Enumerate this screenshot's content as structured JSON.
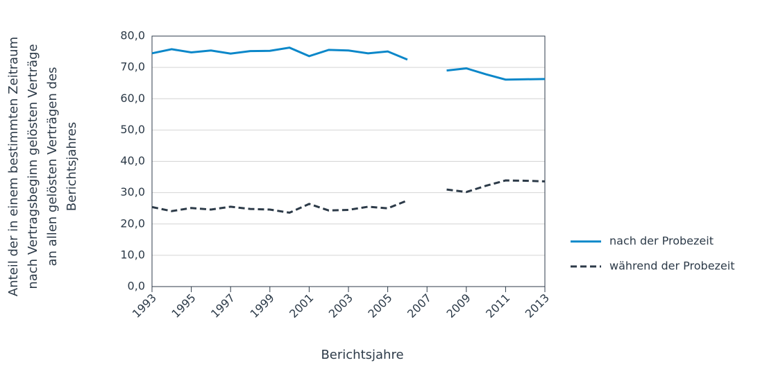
{
  "chart_data": {
    "type": "line",
    "ylabel": [
      "Anteil der in einem bestimmten Zeitraum",
      "nach Vertragsbeginn gelösten Verträge",
      "an allen gelösten Verträgen des",
      "Berichtsjahres"
    ],
    "xlabel": "Berichtsjahre",
    "x": [
      1993,
      1994,
      1995,
      1996,
      1997,
      1998,
      1999,
      2000,
      2001,
      2002,
      2003,
      2004,
      2005,
      2006,
      2007,
      2008,
      2009,
      2010,
      2011,
      2012,
      2013
    ],
    "series": [
      {
        "name": "nach der Probezeit",
        "color": "#0b87c9",
        "dash": false,
        "values": [
          74.5,
          75.8,
          74.8,
          75.4,
          74.4,
          75.2,
          75.3,
          76.3,
          73.6,
          75.6,
          75.4,
          74.5,
          75.1,
          72.5,
          null,
          69.0,
          69.7,
          67.8,
          66.1,
          66.2,
          66.3
        ]
      },
      {
        "name": "während der Probezeit",
        "color": "#2c3a48",
        "dash": true,
        "values": [
          25.4,
          24.1,
          25.1,
          24.6,
          25.5,
          24.8,
          24.6,
          23.6,
          26.4,
          24.3,
          24.5,
          25.5,
          25.0,
          27.5,
          null,
          31.0,
          30.2,
          32.2,
          33.9,
          33.8,
          33.6
        ]
      }
    ],
    "xlim": [
      1993,
      2013
    ],
    "xticks": [
      1993,
      1995,
      1997,
      1999,
      2001,
      2003,
      2005,
      2007,
      2009,
      2011,
      2013
    ],
    "ylim": [
      0,
      80
    ],
    "yticks": [
      {
        "value": 0,
        "label": "0,0"
      },
      {
        "value": 10,
        "label": "10,0"
      },
      {
        "value": 20,
        "label": "20,0"
      },
      {
        "value": 30,
        "label": "30,0"
      },
      {
        "value": 40,
        "label": "40,0"
      },
      {
        "value": 50,
        "label": "50,0"
      },
      {
        "value": 60,
        "label": "60,0"
      },
      {
        "value": 70,
        "label": "70,0"
      },
      {
        "value": 80,
        "label": "80,0"
      }
    ],
    "grid": true,
    "legend": "lower right"
  }
}
